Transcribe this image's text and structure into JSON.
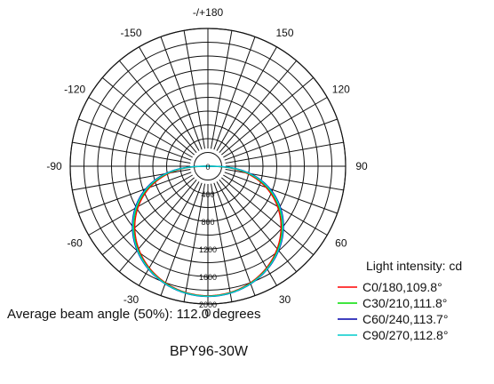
{
  "chart_data": {
    "type": "polar-line",
    "title": "",
    "angle_labels": [
      "-/+180",
      "150",
      "120",
      "90",
      "60",
      "30",
      "0",
      "-30",
      "-60",
      "-90",
      "-120",
      "-150"
    ],
    "angle_label_degrees": [
      180,
      150,
      120,
      90,
      60,
      30,
      0,
      -30,
      -60,
      -90,
      -120,
      -150
    ],
    "radial_labels": [
      "0",
      "400",
      "800",
      "1200",
      "1600",
      "2000"
    ],
    "radial_values": [
      0,
      400,
      800,
      1200,
      1600,
      2000
    ],
    "r_max": 2000,
    "angular_grid_step_deg": 10,
    "radial_grid_step": 200,
    "legend_title": "Light intensity: cd",
    "series": [
      {
        "name": "C0/180,109.8°",
        "color": "#ff0000",
        "peak_cd": 1880,
        "beam_angle_deg": 109.8
      },
      {
        "name": "C30/210,111.8°",
        "color": "#00dd00",
        "peak_cd": 1885,
        "beam_angle_deg": 111.8
      },
      {
        "name": "C60/240,113.7°",
        "color": "#0000aa",
        "peak_cd": 1890,
        "beam_angle_deg": 113.7
      },
      {
        "name": "C90/270,112.8°",
        "color": "#00cccc",
        "peak_cd": 1888,
        "beam_angle_deg": 112.8
      }
    ]
  },
  "captions": {
    "beam_angle": "Average beam angle (50%): 112.0 degrees",
    "model": "BPY96-30W"
  }
}
